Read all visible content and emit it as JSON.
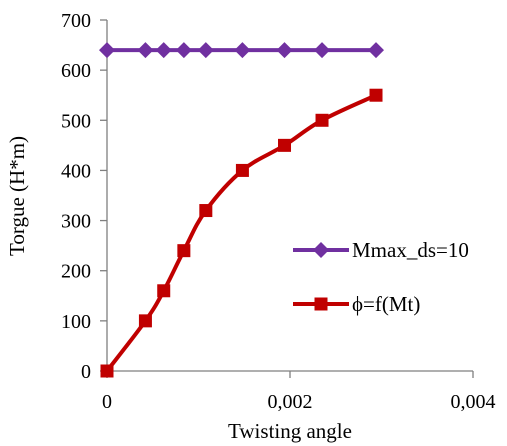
{
  "chart_data": {
    "type": "line",
    "xlabel": "Twisting angle",
    "ylabel": "Torgue (H*m)",
    "xlim": [
      0,
      0.004
    ],
    "ylim": [
      0,
      700
    ],
    "x_ticks": [
      {
        "value": 0,
        "label": "0"
      },
      {
        "value": 0.002,
        "label": "0,002"
      },
      {
        "value": 0.004,
        "label": "0,004"
      }
    ],
    "y_ticks": [
      {
        "value": 0,
        "label": "0"
      },
      {
        "value": 100,
        "label": "100"
      },
      {
        "value": 200,
        "label": "200"
      },
      {
        "value": 300,
        "label": "300"
      },
      {
        "value": 400,
        "label": "400"
      },
      {
        "value": 500,
        "label": "500"
      },
      {
        "value": 600,
        "label": "600"
      },
      {
        "value": 700,
        "label": "700"
      }
    ],
    "grid": false,
    "legend_position": "right",
    "series": [
      {
        "name": "Mmax_ds=10",
        "color": "#7030A0",
        "marker": "diamond",
        "x": [
          0,
          0.00042,
          0.00062,
          0.00084,
          0.00108,
          0.00148,
          0.00194,
          0.00235,
          0.00294
        ],
        "y": [
          640,
          640,
          640,
          640,
          640,
          640,
          640,
          640,
          640
        ]
      },
      {
        "name": "ϕ=f(Mt)",
        "color": "#C00000",
        "marker": "square",
        "x": [
          0,
          0.00042,
          0.00062,
          0.00084,
          0.00108,
          0.00148,
          0.00194,
          0.00235,
          0.00294
        ],
        "y": [
          0,
          100,
          160,
          240,
          320,
          400,
          450,
          500,
          550
        ]
      }
    ]
  }
}
